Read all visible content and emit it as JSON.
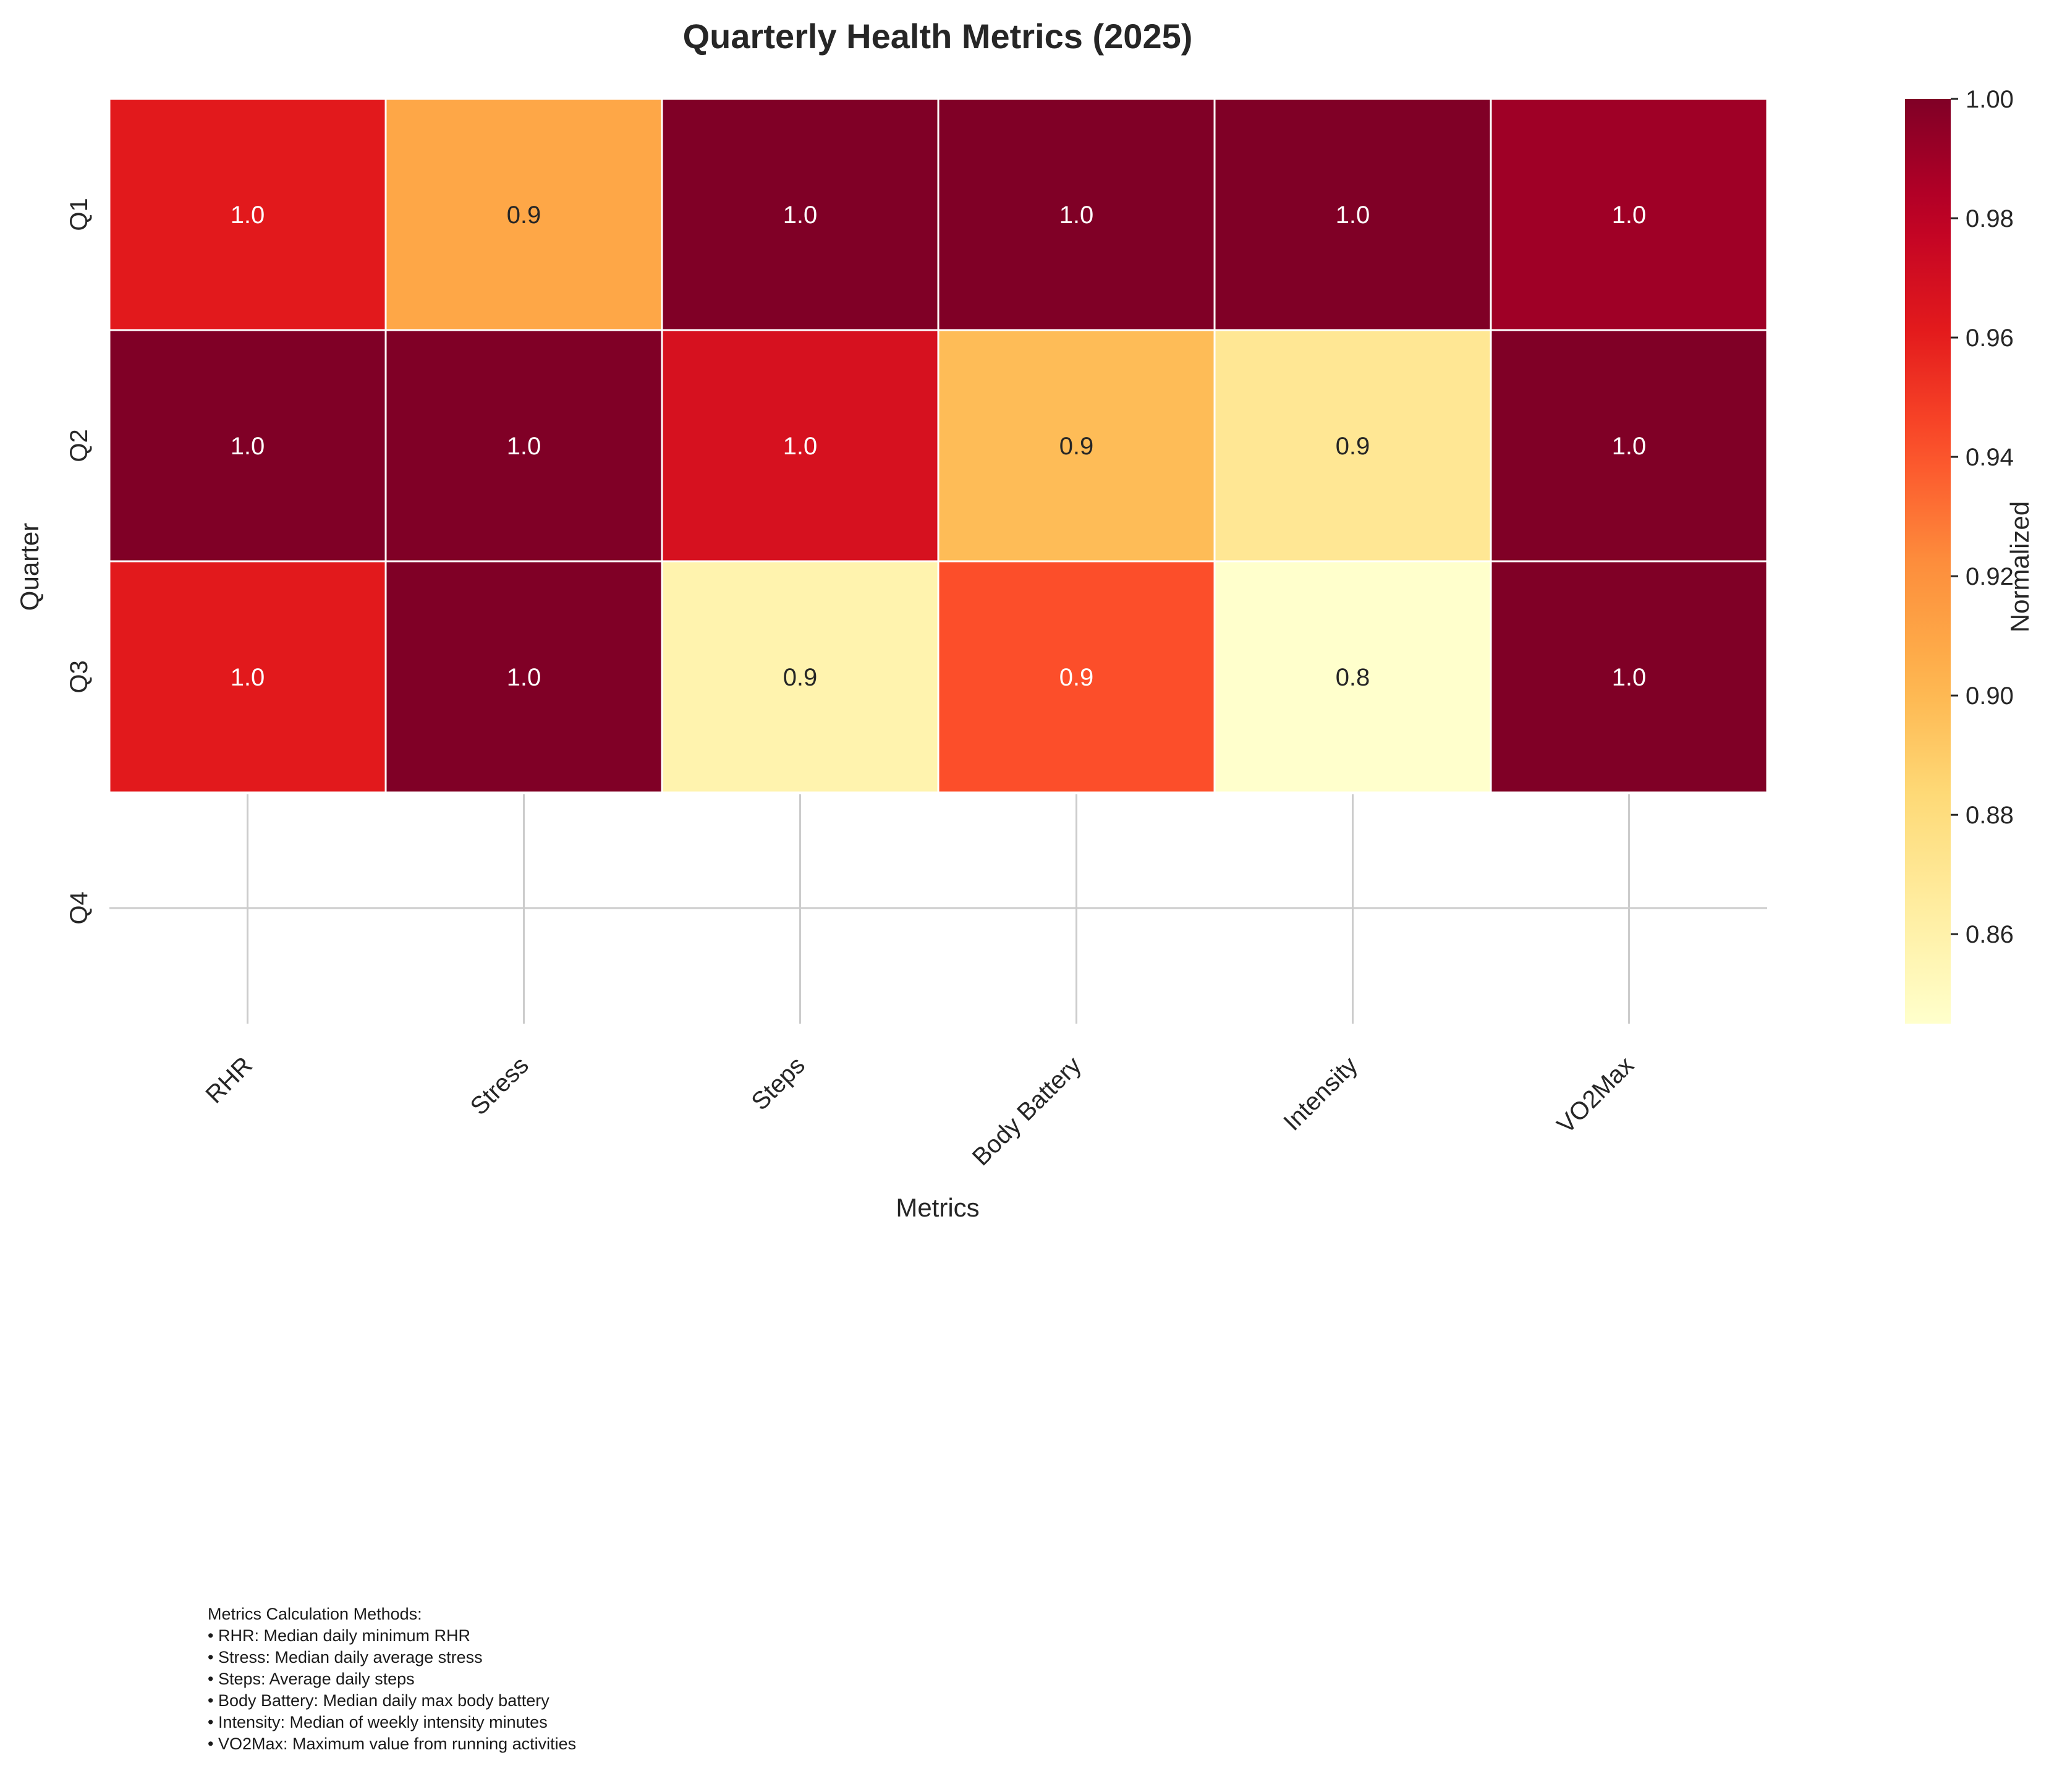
{
  "chart_data": {
    "type": "heatmap",
    "title": "Quarterly Health Metrics (2025)",
    "xlabel": "Metrics",
    "ylabel": "Quarter",
    "x_categories": [
      "RHR",
      "Stress",
      "Steps",
      "Body Battery",
      "Intensity",
      "VO2Max"
    ],
    "y_categories": [
      "Q1",
      "Q2",
      "Q3",
      "Q4"
    ],
    "values": [
      [
        0.962,
        0.909,
        1.0,
        1.0,
        1.0,
        0.99
      ],
      [
        1.0,
        1.0,
        0.968,
        0.898,
        0.87,
        1.0
      ],
      [
        0.962,
        1.0,
        0.858,
        0.942,
        0.845,
        1.0
      ],
      [
        null,
        null,
        null,
        null,
        null,
        null
      ]
    ],
    "cell_labels": [
      [
        "1.0",
        "0.9",
        "1.0",
        "1.0",
        "1.0",
        "1.0"
      ],
      [
        "1.0",
        "1.0",
        "1.0",
        "0.9",
        "0.9",
        "1.0"
      ],
      [
        "1.0",
        "1.0",
        "0.9",
        "0.9",
        "0.8",
        "1.0"
      ],
      [
        "",
        "",
        "",
        "",
        "",
        ""
      ]
    ],
    "colorbar": {
      "label": "Normalized",
      "range": [
        0.845,
        1.0
      ],
      "ticks": [
        "0.86",
        "0.88",
        "0.90",
        "0.92",
        "0.94",
        "0.96",
        "0.98",
        "1.00"
      ],
      "tick_values": [
        0.86,
        0.88,
        0.9,
        0.92,
        0.94,
        0.96,
        0.98,
        1.0
      ],
      "colormap": "YlOrRd"
    },
    "grid": true
  },
  "notes": {
    "heading": "Metrics Calculation Methods:",
    "items": [
      "• RHR: Median daily minimum RHR",
      "• Stress: Median daily average stress",
      "• Steps: Average daily steps",
      "• Body Battery: Median daily max body battery",
      "• Intensity: Median of weekly intensity minutes",
      "• VO2Max: Maximum value from running activities"
    ]
  }
}
